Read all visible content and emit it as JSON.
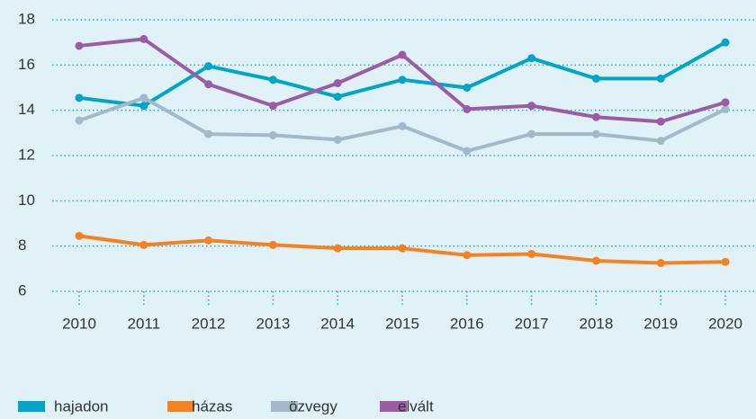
{
  "chart_data": {
    "type": "line",
    "categories": [
      "2010",
      "2011",
      "2012",
      "2013",
      "2014",
      "2015",
      "2016",
      "2017",
      "2018",
      "2019",
      "2020"
    ],
    "series": [
      {
        "name": "hajadon",
        "color": "#00a5c8",
        "values": [
          14.55,
          14.2,
          15.95,
          15.35,
          14.6,
          15.35,
          15.0,
          16.3,
          15.4,
          15.4,
          17.0
        ]
      },
      {
        "name": "házas",
        "color": "#f58220",
        "values": [
          8.45,
          8.05,
          8.25,
          8.05,
          7.9,
          7.9,
          7.6,
          7.65,
          7.35,
          7.25,
          7.3
        ]
      },
      {
        "name": "özvegy",
        "color": "#a3b8c8",
        "values": [
          13.55,
          14.55,
          12.95,
          12.9,
          12.7,
          13.3,
          12.2,
          12.95,
          12.95,
          12.65,
          14.05
        ]
      },
      {
        "name": "elvált",
        "color": "#9b5ba5",
        "values": [
          16.85,
          17.15,
          15.15,
          14.2,
          15.2,
          16.45,
          14.05,
          14.2,
          13.7,
          13.5,
          14.35
        ]
      }
    ],
    "ylim": [
      6,
      18
    ],
    "yticks": [
      6,
      8,
      10,
      12,
      14,
      16,
      18
    ],
    "grid": true,
    "legend": "bottom"
  }
}
